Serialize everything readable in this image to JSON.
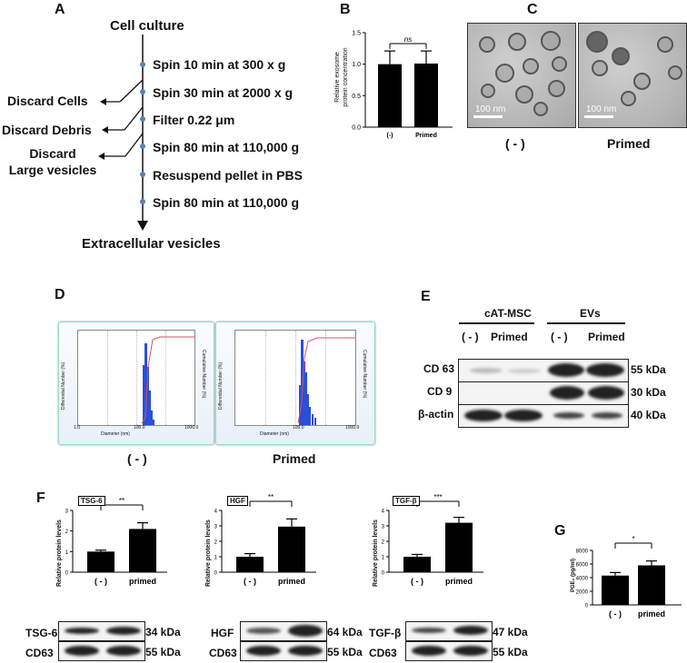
{
  "panels": {
    "a": "A",
    "b": "B",
    "c": "C",
    "d": "D",
    "e": "E",
    "f": "F",
    "g": "G"
  },
  "flow": {
    "top": "Cell culture",
    "steps": [
      "Spin 10 min at 300 x g",
      "Spin 30 min at 2000 x g",
      "Filter 0.22 μm",
      "Spin 80 min at 110,000 g",
      "Resuspend pellet in PBS",
      "Spin 80 min at 110,000 g"
    ],
    "discards": [
      "Discard Cells",
      "Discard Debris",
      "Discard\nLarge vesicles"
    ],
    "bottom": "Extracellular vesicles"
  },
  "panel_b": {
    "sig": "ns",
    "ylabel_line1": "Relative exosome",
    "ylabel_line2": "protein concentration",
    "yticks": [
      "0.0",
      "0.5",
      "1.0",
      "1.5"
    ]
  },
  "panel_c": {
    "scale_bar": "100 nm",
    "labels": [
      "( - )",
      "Primed"
    ]
  },
  "panel_d": {
    "labels": [
      "( - )",
      "Primed"
    ],
    "xlabel": "Diameter (nm)",
    "ylabel_left": "Differential Number (%)",
    "ylabel_right": "Cumulative Number (%)",
    "xticks": [
      "1.0",
      "10.0",
      "100.0",
      "1000.0"
    ]
  },
  "panel_e": {
    "group1": "cAT-MSC",
    "group2": "EVs",
    "lanes": [
      "( - )",
      "Primed",
      "( - )",
      "Primed"
    ],
    "rows": [
      {
        "name": "CD 63",
        "kda": "55 kDa"
      },
      {
        "name": "CD 9",
        "kda": "30 kDa"
      },
      {
        "name": "β-actin",
        "kda": "40 kDa"
      }
    ]
  },
  "panel_f": {
    "ylabel": "Relative protein levels",
    "charts": [
      {
        "tag": "TSG-6",
        "sig": "**",
        "blot": "TSG-6",
        "kda": "34 kDa",
        "ctrl": "CD63",
        "ctrl_kda": "55 kDa"
      },
      {
        "tag": "HGF",
        "sig": "**",
        "blot": "HGF",
        "kda": "64 kDa",
        "ctrl": "CD63",
        "ctrl_kda": "55 kDa"
      },
      {
        "tag": "TGF-β",
        "sig": "***",
        "blot": "TGF-β",
        "kda": "47 kDa",
        "ctrl": "CD63",
        "ctrl_kda": "55 kDa"
      }
    ]
  },
  "panel_g": {
    "ylabel": "PGE₂ (pg/ml)",
    "sig": "*"
  },
  "chart_data": [
    {
      "type": "bar",
      "panel": "B",
      "categories": [
        "(-)",
        "Primed"
      ],
      "values": [
        1.0,
        1.01
      ],
      "errors": [
        0.21,
        0.2
      ],
      "ylabel": "Relative exosome protein concentration",
      "ylim": [
        0,
        1.5
      ],
      "yticks": [
        0,
        0.5,
        1.0,
        1.5
      ]
    },
    {
      "type": "bar",
      "panel": "F-TSG-6",
      "categories": [
        "( - )",
        "primed"
      ],
      "values": [
        1.0,
        2.1
      ],
      "errors": [
        0.07,
        0.3
      ],
      "ylabel": "Relative protein levels",
      "ylim": [
        0,
        3
      ],
      "yticks": [
        0,
        1,
        2,
        3
      ]
    },
    {
      "type": "bar",
      "panel": "F-HGF",
      "categories": [
        "( - )",
        "primed"
      ],
      "values": [
        1.0,
        2.95
      ],
      "errors": [
        0.2,
        0.5
      ],
      "ylabel": "Relative protein levels",
      "ylim": [
        0,
        4
      ],
      "yticks": [
        0,
        1,
        2,
        3,
        4
      ]
    },
    {
      "type": "bar",
      "panel": "F-TGF-β",
      "categories": [
        "( - )",
        "primed"
      ],
      "values": [
        1.0,
        3.2
      ],
      "errors": [
        0.15,
        0.35
      ],
      "ylabel": "Relative protein levels",
      "ylim": [
        0,
        4
      ],
      "yticks": [
        0,
        1,
        2,
        3,
        4
      ]
    },
    {
      "type": "bar",
      "panel": "G",
      "categories": [
        "( - )",
        "primed"
      ],
      "values": [
        4300,
        5800
      ],
      "errors": [
        450,
        650
      ],
      "ylabel": "PGE₂ (pg/ml)",
      "ylim": [
        0,
        8000
      ],
      "yticks": [
        0,
        2000,
        4000,
        6000,
        8000
      ]
    }
  ]
}
